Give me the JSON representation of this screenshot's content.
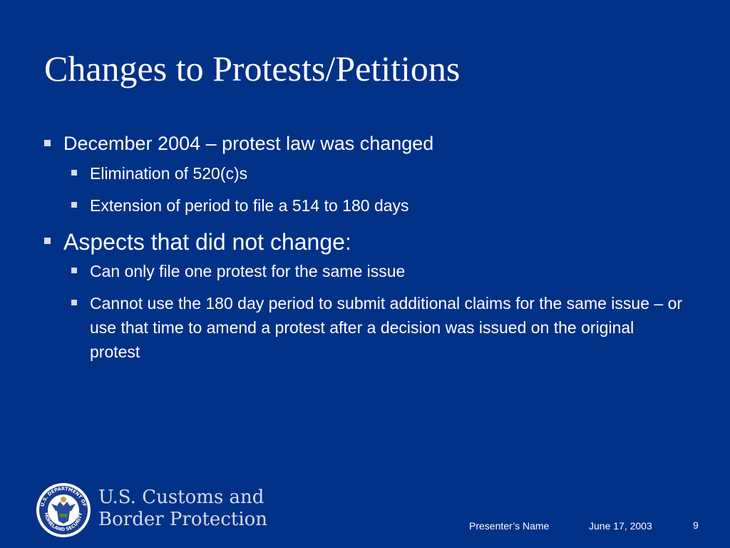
{
  "slide": {
    "title": "Changes to Protests/Petitions",
    "bullets": [
      {
        "text": "December 2004 – protest law was changed",
        "sub": [
          "Elimination of 520(c)s",
          "Extension of period to file a 514 to 180 days"
        ]
      },
      {
        "text": "Aspects that did not change:",
        "sub": [
          "Can only file one protest for the same issue",
          "Cannot use the 180 day period to submit additional claims for the same issue – or use that time to amend a protest after a decision was issued on the original protest"
        ]
      }
    ]
  },
  "footer": {
    "agency_line1": "U.S. Customs and",
    "agency_line2": "Border Protection",
    "seal_icon": "dhs-seal-icon",
    "seal_text_top": "U.S. DEPARTMENT OF",
    "seal_text_bottom": "HOMELAND SECURITY",
    "presenter": "Presenter’s Name",
    "date": "June 17, 2003",
    "page_number": "9"
  },
  "colors": {
    "background": "#023188",
    "text": "#ffffff",
    "bullet_square": "#d8dce6",
    "agency_text": "#d6dbe8"
  }
}
